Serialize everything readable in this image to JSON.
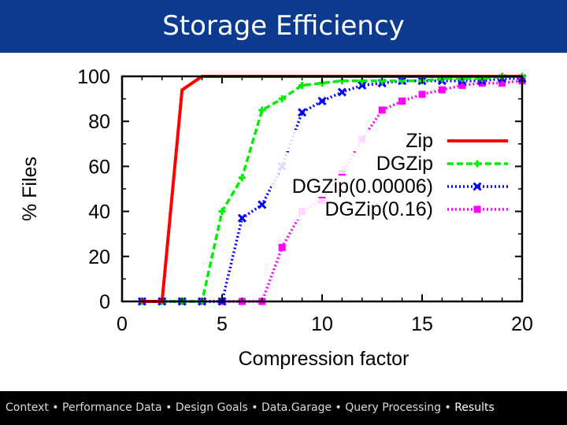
{
  "header": {
    "title": "Storage Efficiency"
  },
  "footer": {
    "items": [
      "Context",
      "Performance Data",
      "Design Goals",
      "Data.Garage",
      "Query Processing",
      "Results"
    ],
    "separator": "•",
    "active_index": 5
  },
  "chart_data": {
    "type": "line",
    "title": "",
    "xlabel": "Compression factor",
    "ylabel": "% Files",
    "xlim": [
      0,
      20
    ],
    "ylim": [
      0,
      100
    ],
    "xticks": [
      0,
      5,
      10,
      15,
      20
    ],
    "yticks": [
      0,
      20,
      40,
      60,
      80,
      100
    ],
    "grid": false,
    "legend_position": "right",
    "series": [
      {
        "name": "Zip",
        "color": "#ff0000",
        "style": "solid",
        "marker": "none",
        "x": [
          1,
          2,
          3,
          4,
          20
        ],
        "y": [
          0,
          0,
          94,
          100,
          100
        ]
      },
      {
        "name": "DGZip",
        "color": "#00ee00",
        "style": "dashed",
        "marker": "plus",
        "x": [
          1,
          2,
          3,
          4,
          5,
          6,
          7,
          8,
          9,
          10,
          11,
          12,
          13,
          14,
          15,
          16,
          17,
          18,
          19,
          20
        ],
        "y": [
          0,
          0,
          0,
          0,
          40,
          55,
          85,
          90,
          96,
          97,
          98,
          98,
          98,
          98,
          98,
          99,
          99,
          99,
          100,
          100
        ]
      },
      {
        "name": "DGZip(0.00006)",
        "color": "#0000ff",
        "style": "dotted",
        "marker": "cross",
        "x": [
          1,
          2,
          3,
          4,
          5,
          6,
          7,
          8,
          9,
          10,
          11,
          12,
          13,
          14,
          15,
          16,
          17,
          18,
          19,
          20
        ],
        "y": [
          0,
          0,
          0,
          0,
          0,
          37,
          43,
          60,
          84,
          89,
          93,
          96,
          97,
          98,
          98,
          98,
          98,
          98,
          99,
          99
        ]
      },
      {
        "name": "DGZip(0.16)",
        "color": "#ff00ff",
        "style": "dotted",
        "marker": "square",
        "x": [
          1,
          2,
          3,
          4,
          5,
          6,
          7,
          8,
          9,
          10,
          11,
          12,
          13,
          14,
          15,
          16,
          17,
          18,
          19,
          20
        ],
        "y": [
          0,
          0,
          0,
          0,
          0,
          0,
          0,
          24,
          40,
          45,
          57,
          72,
          85,
          89,
          92,
          94,
          96,
          97,
          97,
          98
        ]
      }
    ]
  }
}
